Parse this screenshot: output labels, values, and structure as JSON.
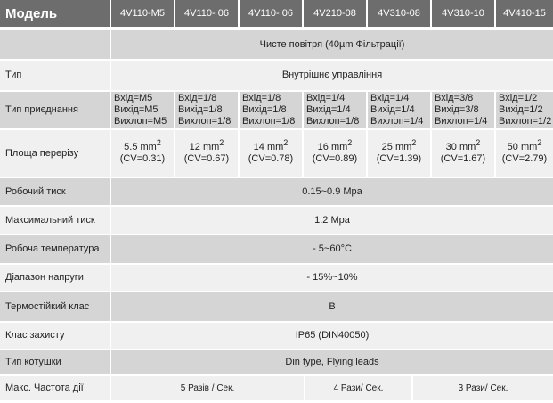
{
  "header": {
    "label": "Модель",
    "models": [
      "4V110-M5",
      "4V110- 06",
      "4V110- 06",
      "4V210-08",
      "4V310-08",
      "4V310-10",
      "4V410-15"
    ]
  },
  "medium": {
    "label": "",
    "value": "Чисте повітря (40µm Фільтрації)"
  },
  "type": {
    "label": "Тип",
    "value": "Внутрішнє управління"
  },
  "connection": {
    "label": "Тип приєднання",
    "cells": [
      [
        "Вхід=M5",
        "Вихід=M5",
        "Вихлоп=M5"
      ],
      [
        "Вхід=1/8",
        "Вихід=1/8",
        "Вихлоп=1/8"
      ],
      [
        "Вхід=1/8",
        "Вихід=1/8",
        "Вихлоп=1/8"
      ],
      [
        "Вхід=1/4",
        "Вихід=1/4",
        "Вихлоп=1/8"
      ],
      [
        "Вхід=1/4",
        "Вихід=1/4",
        "Вихлоп=1/4"
      ],
      [
        "Вхід=3/8",
        "Вихід=3/8",
        "Вихлоп=1/4"
      ],
      [
        "Вхід=1/2",
        "Вихід=1/2",
        "Вихлоп=1/2"
      ]
    ]
  },
  "area": {
    "label": "Площа перерізу",
    "unit": "mm",
    "exp": "2",
    "cells": [
      [
        "5.5",
        "(CV=0.31)"
      ],
      [
        "12",
        "(CV=0.67)"
      ],
      [
        "14",
        "(CV=0.78)"
      ],
      [
        "16",
        "(CV=0.89)"
      ],
      [
        "25",
        "(CV=1.39)"
      ],
      [
        "30",
        "(CV=1.67)"
      ],
      [
        "50",
        "(CV=2.79)"
      ]
    ]
  },
  "rows": [
    {
      "label": "Робочий тиск",
      "value": "0.15~0.9 Mpa"
    },
    {
      "label": "Максимальний тиск",
      "value": "1.2 Mpa"
    },
    {
      "label": "Робоча температура",
      "value": "- 5~60°C"
    },
    {
      "label": "Діапазон напруги",
      "value": "- 15%~10%"
    },
    {
      "label": "Термостійкий клас",
      "value": "B"
    },
    {
      "label": "Клас захисту",
      "value": "IP65 (DIN40050)"
    },
    {
      "label": "Тип котушки",
      "value": "Din type, Flying leads"
    }
  ],
  "frequency": {
    "label": "Макс. Частота дії",
    "values": [
      "5 Разів / Сек.",
      "4 Рази/ Сек.",
      "3 Рази/ Сек."
    ]
  }
}
